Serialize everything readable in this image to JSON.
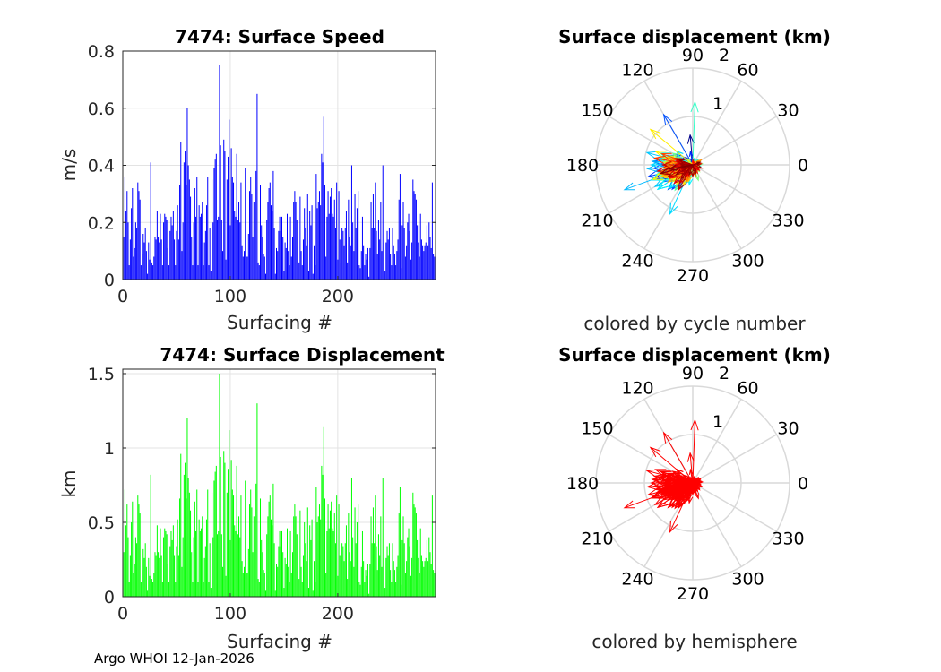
{
  "footer": "Argo WHOI 12-Jan-2026",
  "colors": {
    "speed_bar": "#0000ff",
    "displacement_bar": "#00ff00",
    "hemisphere_arrow": "#ff0000",
    "grid": "#d9d9d9",
    "axis": "#262626"
  },
  "chart_data": [
    {
      "type": "bar",
      "title": "7474: Surface Speed",
      "xlabel": "Surfacing #",
      "ylabel": "m/s",
      "xlim": [
        0,
        291
      ],
      "ylim": [
        0,
        0.8
      ],
      "xticks": [
        "0",
        "100",
        "200"
      ],
      "yticks": [
        "0",
        "0.2",
        "0.4",
        "0.6",
        "0.8"
      ],
      "grid": true,
      "values": [
        0.15,
        0.36,
        0.24,
        0.31,
        0.2,
        0.05,
        0.14,
        0.25,
        0.32,
        0.08,
        0.11,
        0.2,
        0.18,
        0.34,
        0.31,
        0.28,
        0.05,
        0.09,
        0.16,
        0.13,
        0.18,
        0.1,
        0.02,
        0.13,
        0.07,
        0.41,
        0.06,
        0.05,
        0.08,
        0.15,
        0.14,
        0.24,
        0.15,
        0.13,
        0.23,
        0.14,
        0.05,
        0.2,
        0.23,
        0.22,
        0.21,
        0.11,
        0.05,
        0.17,
        0.22,
        0.19,
        0.24,
        0.14,
        0.05,
        0.17,
        0.26,
        0.14,
        0.33,
        0.48,
        0.1,
        0.2,
        0.41,
        0.45,
        0.33,
        0.6,
        0.4,
        0.35,
        0.29,
        0.15,
        0.05,
        0.2,
        0.32,
        0.22,
        0.36,
        0.05,
        0.26,
        0.22,
        0.23,
        0.27,
        0.05,
        0.13,
        0.17,
        0.26,
        0.36,
        0.05,
        0.18,
        0.03,
        0.35,
        0.2,
        0.39,
        0.42,
        0.44,
        0.21,
        0.22,
        0.75,
        0.47,
        0.21,
        0.1,
        0.49,
        0.45,
        0.07,
        0.35,
        0.43,
        0.56,
        0.19,
        0.46,
        0.36,
        0.34,
        0.24,
        0.22,
        0.44,
        0.21,
        0.27,
        0.2,
        0.34,
        0.12,
        0.08,
        0.1,
        0.39,
        0.08,
        0.08,
        0.16,
        0.31,
        0.36,
        0.3,
        0.15,
        0.27,
        0.19,
        0.38,
        0.65,
        0.06,
        0.05,
        0.33,
        0.19,
        0.15,
        0.09,
        0.08,
        0.02,
        0.21,
        0.27,
        0.32,
        0.34,
        0.26,
        0.24,
        0.38,
        0.18,
        0.02,
        0.11,
        0.1,
        0.17,
        0.22,
        0.17,
        0.22,
        0.15,
        0.03,
        0.13,
        0.11,
        0.23,
        0.1,
        0.05,
        0.22,
        0.08,
        0.15,
        0.27,
        0.31,
        0.27,
        0.21,
        0.15,
        0.06,
        0.29,
        0.1,
        0.05,
        0.14,
        0.25,
        0.18,
        0.12,
        0.3,
        0.03,
        0.24,
        0.19,
        0.26,
        0.02,
        0.12,
        0.05,
        0.37,
        0.25,
        0.27,
        0.31,
        0.26,
        0.44,
        0.41,
        0.57,
        0.33,
        0.08,
        0.22,
        0.31,
        0.23,
        0.29,
        0.32,
        0.23,
        0.22,
        0.28,
        0.18,
        0.34,
        0.07,
        0.31,
        0.14,
        0.06,
        0.18,
        0.17,
        0.12,
        0.18,
        0.24,
        0.06,
        0.28,
        0.15,
        0.12,
        0.4,
        0.2,
        0.1,
        0.3,
        0.18,
        0.25,
        0.31,
        0.05,
        0.04,
        0.1,
        0.22,
        0.12,
        0.05,
        0.09,
        0.07,
        0.11,
        0.01,
        0.11,
        0.27,
        0.18,
        0.3,
        0.18,
        0.34,
        0.17,
        0.09,
        0.21,
        0.14,
        0.27,
        0.1,
        0.4,
        0.13,
        0.03,
        0.13,
        0.17,
        0.14,
        0.18,
        0.09,
        0.05,
        0.18,
        0.12,
        0.09,
        0.05,
        0.1,
        0.14,
        0.28,
        0.37,
        0.04,
        0.19,
        0.27,
        0.18,
        0.08,
        0.12,
        0.2,
        0.23,
        0.17,
        0.07,
        0.13,
        0.35,
        0.31,
        0.3,
        0.28,
        0.19,
        0.13,
        0.08,
        0.23,
        0.14,
        0.12,
        0.1,
        0.12,
        0.13,
        0.19,
        0.12,
        0.2,
        0.15,
        0.11,
        0.34,
        0.09,
        0.08,
        0.25
      ]
    },
    {
      "type": "bar",
      "title": "7474: Surface Displacement",
      "xlabel": "Surfacing #",
      "ylabel": "km",
      "xlim": [
        0,
        291
      ],
      "ylim": [
        0,
        1.53
      ],
      "xticks": [
        "0",
        "100",
        "200"
      ],
      "yticks": [
        "0",
        "0.5",
        "1",
        "1.5"
      ],
      "grid": true,
      "values": [
        0.3,
        0.72,
        0.48,
        0.62,
        0.4,
        0.1,
        0.28,
        0.5,
        0.64,
        0.16,
        0.22,
        0.4,
        0.36,
        0.68,
        0.62,
        0.56,
        0.1,
        0.18,
        0.32,
        0.26,
        0.36,
        0.2,
        0.04,
        0.26,
        0.14,
        0.82,
        0.12,
        0.1,
        0.16,
        0.3,
        0.28,
        0.48,
        0.3,
        0.26,
        0.46,
        0.28,
        0.1,
        0.4,
        0.46,
        0.44,
        0.42,
        0.22,
        0.1,
        0.34,
        0.44,
        0.38,
        0.48,
        0.28,
        0.1,
        0.34,
        0.52,
        0.28,
        0.66,
        0.96,
        0.2,
        0.4,
        0.82,
        0.9,
        0.66,
        1.2,
        0.8,
        0.7,
        0.58,
        0.3,
        0.1,
        0.4,
        0.64,
        0.44,
        0.72,
        0.1,
        0.52,
        0.44,
        0.46,
        0.54,
        0.1,
        0.26,
        0.34,
        0.52,
        0.72,
        0.1,
        0.36,
        0.06,
        0.7,
        0.4,
        0.78,
        0.84,
        0.88,
        0.42,
        0.44,
        1.5,
        0.94,
        0.42,
        0.2,
        0.98,
        0.9,
        0.14,
        0.7,
        0.86,
        1.12,
        0.38,
        0.92,
        0.72,
        0.68,
        0.48,
        0.44,
        0.88,
        0.42,
        0.54,
        0.4,
        0.68,
        0.24,
        0.16,
        0.2,
        0.78,
        0.16,
        0.16,
        0.32,
        0.62,
        0.72,
        0.6,
        0.3,
        0.54,
        0.38,
        0.76,
        1.3,
        0.12,
        0.1,
        0.66,
        0.38,
        0.3,
        0.18,
        0.16,
        0.04,
        0.42,
        0.54,
        0.64,
        0.68,
        0.52,
        0.48,
        0.76,
        0.36,
        0.04,
        0.22,
        0.2,
        0.34,
        0.44,
        0.34,
        0.44,
        0.3,
        0.06,
        0.26,
        0.22,
        0.46,
        0.2,
        0.1,
        0.44,
        0.16,
        0.3,
        0.54,
        0.62,
        0.54,
        0.42,
        0.3,
        0.12,
        0.58,
        0.2,
        0.1,
        0.28,
        0.5,
        0.36,
        0.24,
        0.6,
        0.06,
        0.48,
        0.38,
        0.52,
        0.04,
        0.24,
        0.1,
        0.74,
        0.5,
        0.54,
        0.62,
        0.52,
        0.88,
        0.82,
        1.14,
        0.66,
        0.16,
        0.44,
        0.62,
        0.46,
        0.58,
        0.64,
        0.46,
        0.44,
        0.56,
        0.36,
        0.68,
        0.14,
        0.62,
        0.28,
        0.12,
        0.36,
        0.34,
        0.24,
        0.36,
        0.48,
        0.12,
        0.56,
        0.3,
        0.24,
        0.8,
        0.4,
        0.2,
        0.6,
        0.36,
        0.5,
        0.62,
        0.1,
        0.08,
        0.2,
        0.44,
        0.24,
        0.1,
        0.18,
        0.14,
        0.22,
        0.02,
        0.22,
        0.54,
        0.36,
        0.6,
        0.36,
        0.68,
        0.34,
        0.18,
        0.42,
        0.28,
        0.54,
        0.2,
        0.8,
        0.26,
        0.06,
        0.26,
        0.34,
        0.28,
        0.36,
        0.18,
        0.1,
        0.36,
        0.24,
        0.18,
        0.1,
        0.2,
        0.28,
        0.56,
        0.74,
        0.08,
        0.38,
        0.54,
        0.36,
        0.16,
        0.24,
        0.4,
        0.46,
        0.34,
        0.14,
        0.26,
        0.7,
        0.62,
        0.6,
        0.56,
        0.38,
        0.26,
        0.16,
        0.46,
        0.28,
        0.24,
        0.2,
        0.24,
        0.26,
        0.38,
        0.24,
        0.4,
        0.3,
        0.22,
        0.68,
        0.18,
        0.16,
        0.5
      ]
    },
    {
      "type": "polar-compass",
      "title": "Surface displacement (km)",
      "caption": "colored by cycle number",
      "color_mode": "cycle",
      "rlim": [
        0,
        2
      ],
      "rticks": [
        "1",
        "2"
      ],
      "theta_ticks": [
        "0",
        "30",
        "60",
        "90",
        "120",
        "150",
        "180",
        "210",
        "240",
        "270",
        "300",
        "330"
      ],
      "magnitude_source": "displacement",
      "direction_deg": [
        200,
        170,
        230,
        95,
        185,
        300,
        150,
        210,
        190,
        250,
        175,
        220,
        160,
        205,
        195,
        240,
        80,
        130,
        185,
        215,
        190,
        265,
        40,
        170,
        225,
        200,
        110,
        320,
        180,
        235,
        160,
        205,
        245,
        140,
        190,
        215,
        20,
        175,
        200,
        230,
        150,
        185,
        270,
        210,
        165,
        195,
        225,
        100,
        350,
        180,
        205,
        240,
        170,
        195,
        145,
        220,
        185,
        200,
        230,
        120,
        175,
        210,
        160,
        250,
        60,
        190,
        205,
        165,
        225,
        280,
        185,
        140,
        215,
        200,
        330,
        170,
        195,
        235,
        180,
        10,
        220,
        90,
        160,
        205,
        190,
        175,
        215,
        250,
        140,
        200,
        185,
        230,
        300,
        165,
        210,
        75,
        195,
        180,
        245,
        155,
        200,
        170,
        225,
        190,
        140,
        215,
        260,
        180,
        205,
        165,
        230,
        350,
        280,
        195,
        45,
        15,
        175,
        210,
        160,
        240,
        190,
        220,
        170,
        205,
        88,
        340,
        300,
        195,
        180,
        250,
        215,
        160,
        30,
        185,
        200,
        235,
        170,
        210,
        150,
        195,
        225,
        70,
        265,
        5,
        180,
        210,
        290,
        160,
        195,
        40,
        240,
        185,
        170,
        315,
        25,
        205,
        130,
        190,
        220,
        175,
        160,
        210,
        235,
        345,
        195,
        280,
        60,
        175,
        200,
        250,
        190,
        165,
        100,
        220,
        205,
        180,
        355,
        240,
        310,
        195,
        170,
        215,
        185,
        230,
        200,
        160,
        140,
        195,
        325,
        210,
        180,
        245,
        165,
        205,
        190,
        225,
        175,
        255,
        200,
        35,
        215,
        185,
        300,
        170,
        240,
        195,
        160,
        210,
        340,
        185,
        225,
        195,
        170,
        205,
        30,
        180,
        250,
        165,
        200,
        275,
        310,
        190,
        215,
        285,
        20,
        170,
        330,
        200,
        90,
        240,
        175,
        205,
        190,
        225,
        160,
        210,
        290,
        185,
        250,
        195,
        300,
        170,
        215,
        60,
        200,
        185,
        230,
        165,
        10,
        280,
        205,
        195,
        320,
        85,
        175,
        240,
        210,
        190,
        350,
        180,
        225,
        165,
        320,
        200,
        185,
        235,
        170,
        300,
        210,
        195,
        180,
        240,
        205,
        160,
        215,
        5,
        190,
        225,
        270,
        340,
        200,
        175,
        230,
        185,
        210,
        160,
        250,
        195,
        290,
        20,
        190
      ]
    },
    {
      "type": "polar-compass",
      "title": "Surface displacement (km)",
      "caption": "colored by hemisphere",
      "color_mode": "hemisphere",
      "rlim": [
        0,
        2
      ],
      "rticks": [
        "1",
        "2"
      ],
      "theta_ticks": [
        "0",
        "30",
        "60",
        "90",
        "120",
        "150",
        "180",
        "210",
        "240",
        "270",
        "300",
        "330"
      ],
      "magnitude_source": "displacement",
      "direction_source": "same as cycle-colored compass"
    }
  ]
}
